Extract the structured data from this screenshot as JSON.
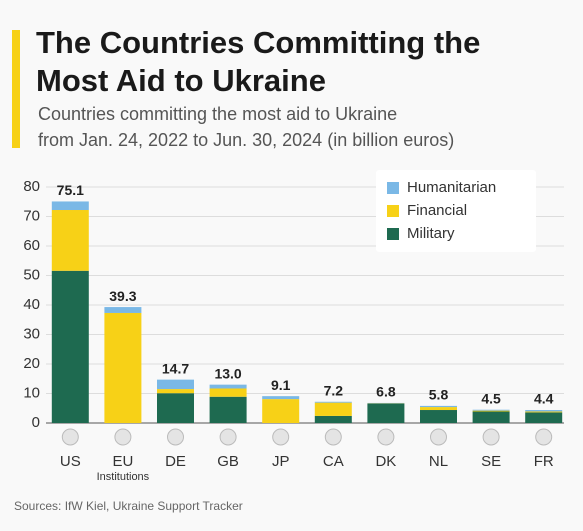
{
  "chart_data": {
    "type": "stacked-bar",
    "title": "The Countries Committing the Most Aid to Ukraine",
    "subtitle": [
      "Countries committing the most aid to Ukraine",
      "from Jan. 24, 2022 to Jun. 30, 2024 (in billion euros)"
    ],
    "categories": [
      "US",
      "EU\nInstitutions",
      "DE",
      "GB",
      "JP",
      "CA",
      "DK",
      "NL",
      "SE",
      "FR"
    ],
    "series": [
      {
        "name": "Military",
        "color": "#1e6a50",
        "values": [
          51.6,
          0,
          10.1,
          8.9,
          0,
          2.4,
          6.6,
          4.4,
          3.9,
          3.6
        ]
      },
      {
        "name": "Financial",
        "color": "#f7d117",
        "values": [
          20.6,
          37.3,
          1.4,
          2.8,
          8.1,
          4.5,
          0.1,
          1.0,
          0.3,
          0.3
        ]
      },
      {
        "name": "Humanitarian",
        "color": "#7ab8e6",
        "values": [
          2.9,
          2.0,
          3.2,
          1.3,
          1.0,
          0.3,
          0.1,
          0.4,
          0.3,
          0.5
        ]
      }
    ],
    "totals": [
      75.1,
      39.3,
      14.7,
      13.0,
      9.1,
      7.2,
      6.8,
      5.8,
      4.5,
      4.4
    ],
    "total_labels": [
      "75.1",
      "39.3",
      "14.7",
      "13.0",
      "9.1",
      "7.2",
      "6.8",
      "5.8",
      "4.5",
      "4.4"
    ],
    "ylim": [
      0,
      80
    ],
    "yticks": [
      0,
      10,
      20,
      30,
      40,
      50,
      60,
      70,
      80
    ],
    "grid": true,
    "legend": "top-right",
    "source": "Sources: IfW Kiel, Ukraine Support Tracker"
  }
}
